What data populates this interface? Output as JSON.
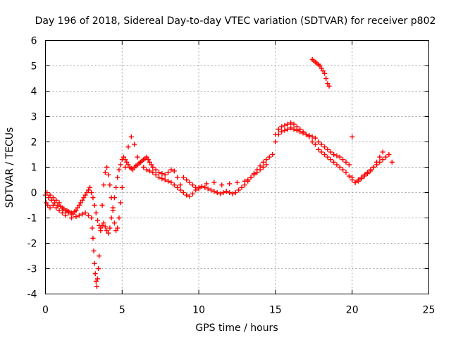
{
  "chart_data": {
    "type": "scatter",
    "title": "Day 196 of 2018, Sidereal Day-to-day VTEC variation (SDTVAR) for receiver p802",
    "xlabel": "GPS time / hours",
    "ylabel": "SDTVAR / TECUs",
    "xlim": [
      0,
      25
    ],
    "ylim": [
      -4,
      6
    ],
    "xticks": [
      0,
      5,
      10,
      15,
      20,
      25
    ],
    "yticks": [
      -4,
      -3,
      -2,
      -1,
      0,
      1,
      2,
      3,
      4,
      5,
      6
    ],
    "xtick_labels": [
      "0",
      "5",
      "10",
      "15",
      "20",
      "25"
    ],
    "ytick_labels": [
      "-4",
      "-3",
      "-2",
      "-1",
      "0",
      "1",
      "2",
      "3",
      "4",
      "5",
      "6"
    ],
    "grid": true,
    "marker": "+",
    "color": "#ff0000",
    "series": [
      {
        "name": "SDTVAR",
        "x": [
          0.0,
          0.1,
          0.2,
          0.3,
          0.4,
          0.5,
          0.6,
          0.7,
          0.8,
          0.9,
          1.0,
          1.1,
          1.2,
          1.3,
          1.4,
          1.5,
          1.6,
          1.7,
          1.8,
          1.9,
          2.0,
          2.1,
          2.2,
          2.3,
          2.4,
          2.5,
          2.6,
          2.7,
          2.8,
          2.9,
          3.0,
          3.1,
          3.2,
          3.3,
          3.4,
          3.5,
          3.6,
          3.7,
          3.8,
          3.9,
          4.0,
          4.1,
          4.2,
          4.3,
          4.4,
          4.5,
          4.6,
          4.7,
          4.8,
          4.9,
          5.0,
          5.1,
          5.2,
          5.3,
          5.4,
          5.5,
          5.6,
          5.7,
          5.8,
          5.9,
          6.0,
          6.1,
          6.2,
          6.3,
          6.4,
          6.5,
          6.6,
          6.7,
          6.8,
          6.9,
          7.0,
          7.2,
          7.4,
          7.6,
          7.8,
          8.0,
          8.2,
          8.4,
          8.6,
          8.8,
          9.0,
          9.2,
          9.4,
          9.6,
          9.8,
          10.0,
          10.2,
          10.4,
          10.6,
          10.8,
          11.0,
          11.2,
          11.4,
          11.6,
          11.8,
          12.0,
          12.2,
          12.4,
          12.6,
          12.8,
          13.0,
          13.2,
          13.4,
          13.6,
          13.8,
          14.0,
          14.2,
          14.4,
          14.6,
          14.8,
          15.0,
          15.2,
          15.4,
          15.6,
          15.8,
          16.0,
          16.2,
          16.4,
          16.6,
          16.8,
          17.0,
          17.2,
          17.4,
          17.6,
          17.8,
          18.0,
          18.2,
          18.4,
          18.6,
          18.8,
          19.0,
          19.2,
          19.4,
          19.6,
          19.8,
          20.0,
          20.2,
          20.4,
          20.6,
          20.8,
          21.0,
          21.2,
          21.4,
          21.6,
          21.8,
          22.0,
          22.2,
          22.4,
          22.6,
          0.05,
          0.15,
          0.3,
          0.5,
          0.7,
          0.9,
          1.1,
          1.3,
          1.5,
          1.7,
          2.0,
          2.2,
          2.4,
          2.6,
          2.8,
          3.0,
          3.05,
          3.1,
          3.15,
          3.2,
          3.25,
          3.3,
          3.35,
          3.4,
          3.45,
          3.5,
          3.6,
          3.7,
          3.8,
          3.9,
          4.0,
          4.1,
          4.2,
          4.3,
          4.4,
          4.5,
          4.6,
          4.7,
          4.8,
          4.9,
          5.0,
          5.2,
          5.4,
          5.6,
          5.8,
          6.0,
          6.2,
          6.4,
          6.6,
          6.8,
          7.0,
          7.2,
          7.4,
          7.6,
          7.8,
          8.0,
          8.2,
          8.4,
          8.6,
          8.8,
          9.0,
          9.2,
          9.4,
          9.6,
          9.8,
          10.0,
          10.5,
          11.0,
          11.5,
          12.0,
          12.5,
          13.0,
          13.2,
          13.4,
          13.6,
          13.8,
          14.0,
          14.2,
          14.4,
          15.0,
          15.2,
          15.4,
          15.6,
          15.8,
          16.0,
          16.2,
          16.4,
          16.6,
          16.8,
          17.0,
          17.2,
          17.4,
          17.6,
          17.8,
          18.0,
          18.2,
          18.4,
          18.6,
          18.8,
          19.0,
          19.2,
          19.4,
          19.6,
          19.8,
          20.0,
          20.2,
          20.4,
          20.6,
          20.8,
          21.0,
          21.2,
          21.4,
          21.6,
          21.8,
          22.0,
          17.4,
          17.5,
          17.6,
          17.7,
          17.8,
          17.9,
          18.0,
          18.1,
          18.2,
          18.3,
          18.4,
          18.5,
          20.0
        ],
        "y": [
          -0.1,
          0.0,
          -0.2,
          -0.1,
          -0.3,
          -0.2,
          -0.4,
          -0.3,
          -0.5,
          -0.4,
          -0.55,
          -0.6,
          -0.65,
          -0.7,
          -0.7,
          -0.75,
          -0.8,
          -0.8,
          -0.85,
          -0.75,
          -0.7,
          -0.6,
          -0.5,
          -0.4,
          -0.3,
          -0.2,
          -0.1,
          0.0,
          0.1,
          0.2,
          0.0,
          -0.2,
          -0.5,
          -0.8,
          -1.1,
          -1.3,
          -1.4,
          -1.3,
          -1.2,
          -1.35,
          -1.5,
          -1.6,
          -1.4,
          -1.0,
          -0.6,
          -0.2,
          0.2,
          0.6,
          0.9,
          1.1,
          1.3,
          1.4,
          1.3,
          1.2,
          1.1,
          1.0,
          0.95,
          0.9,
          1.0,
          1.05,
          1.1,
          1.15,
          1.2,
          1.25,
          1.3,
          1.35,
          1.4,
          1.3,
          1.2,
          1.1,
          1.0,
          0.9,
          0.8,
          0.75,
          0.7,
          0.8,
          0.9,
          0.85,
          0.6,
          0.3,
          0.0,
          -0.1,
          -0.15,
          -0.05,
          0.1,
          0.2,
          0.25,
          0.2,
          0.15,
          0.1,
          0.05,
          0.0,
          -0.05,
          0.0,
          0.05,
          0.0,
          -0.05,
          0.0,
          0.1,
          0.2,
          0.3,
          0.45,
          0.6,
          0.75,
          0.9,
          1.05,
          1.2,
          1.3,
          1.4,
          1.5,
          2.0,
          2.3,
          2.4,
          2.45,
          2.5,
          2.55,
          2.5,
          2.45,
          2.4,
          2.35,
          2.3,
          2.25,
          2.2,
          2.15,
          2.0,
          1.9,
          1.8,
          1.7,
          1.6,
          1.5,
          1.45,
          1.4,
          1.3,
          1.2,
          1.1,
          0.6,
          0.4,
          0.5,
          0.6,
          0.7,
          0.8,
          0.9,
          1.0,
          1.1,
          1.2,
          1.3,
          1.4,
          1.5,
          1.2,
          -0.4,
          -0.5,
          -0.6,
          -0.5,
          -0.6,
          -0.7,
          -0.8,
          -0.9,
          -0.8,
          -1.0,
          -0.95,
          -0.9,
          -0.85,
          -0.8,
          -0.9,
          -1.0,
          -1.4,
          -1.8,
          -2.3,
          -2.8,
          -3.2,
          -3.5,
          -3.7,
          -3.4,
          -3.0,
          -2.5,
          -1.5,
          -0.5,
          0.3,
          0.8,
          1.0,
          0.7,
          0.3,
          -0.2,
          -0.7,
          -1.2,
          -1.5,
          -1.4,
          -1.0,
          -0.4,
          0.2,
          1.0,
          1.8,
          2.2,
          1.9,
          1.4,
          1.2,
          1.0,
          0.9,
          0.85,
          0.8,
          0.7,
          0.6,
          0.55,
          0.5,
          0.45,
          0.4,
          0.3,
          0.2,
          0.1,
          0.6,
          0.5,
          0.4,
          0.3,
          0.2,
          0.15,
          0.35,
          0.4,
          0.3,
          0.35,
          0.4,
          0.45,
          0.5,
          0.6,
          0.7,
          0.8,
          0.9,
          1.0,
          1.1,
          2.3,
          2.5,
          2.6,
          2.65,
          2.7,
          2.75,
          2.7,
          2.6,
          2.5,
          2.4,
          2.3,
          2.2,
          2.0,
          1.9,
          1.7,
          1.6,
          1.5,
          1.4,
          1.3,
          1.2,
          1.1,
          1.0,
          0.9,
          0.8,
          0.65,
          0.5,
          0.4,
          0.45,
          0.55,
          0.65,
          0.75,
          0.85,
          1.0,
          1.2,
          1.4,
          1.6,
          5.25,
          5.2,
          5.15,
          5.1,
          5.05,
          5.0,
          4.9,
          4.8,
          4.7,
          4.5,
          4.3,
          4.2,
          2.2
        ]
      }
    ]
  }
}
